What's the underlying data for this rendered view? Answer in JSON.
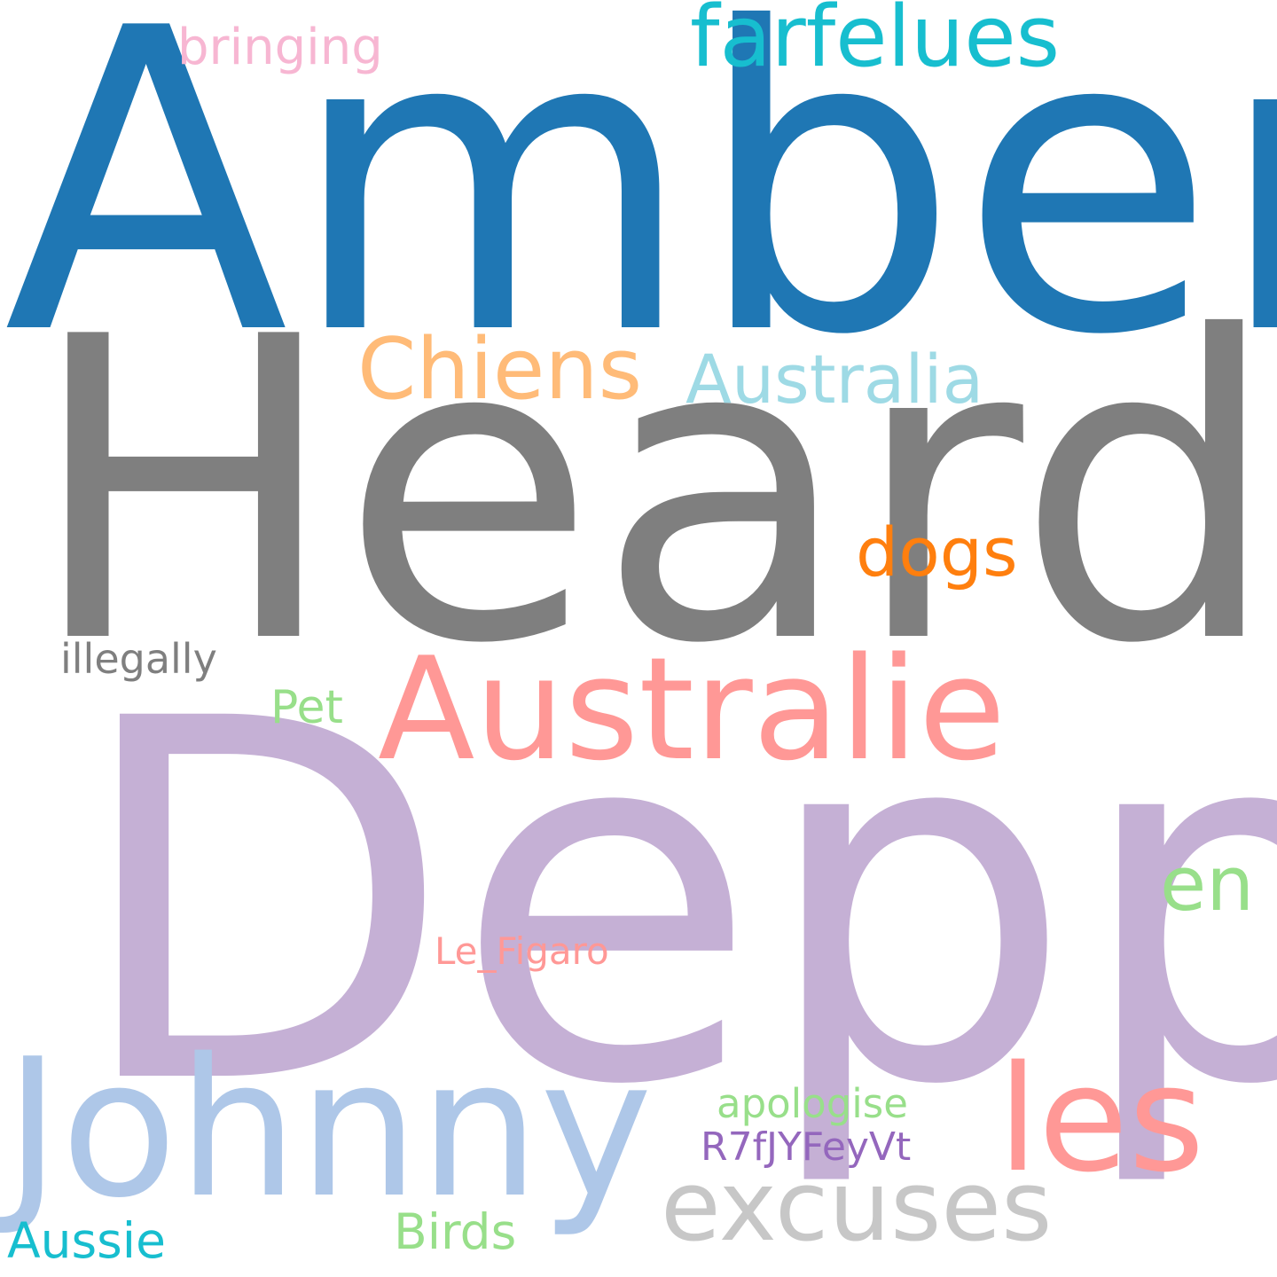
{
  "words": {
    "amber": {
      "text": "Amber",
      "color": "#1f77b4"
    },
    "heard": {
      "text": "Heard",
      "color": "#7f7f7f"
    },
    "depp": {
      "text": "Depp",
      "color": "#c5b0d5"
    },
    "johnny": {
      "text": "Johnny",
      "color": "#aec7e8"
    },
    "australie": {
      "text": "Australie",
      "color": "#ff9896"
    },
    "les": {
      "text": "les",
      "color": "#ff9896"
    },
    "excuses": {
      "text": "excuses",
      "color": "#c7c7c7"
    },
    "farfelues": {
      "text": "farfelues",
      "color": "#17becf"
    },
    "chiens": {
      "text": "Chiens",
      "color": "#ffbb78"
    },
    "australia": {
      "text": "Australia",
      "color": "#9edae5"
    },
    "dogs": {
      "text": "dogs",
      "color": "#ff7f0e"
    },
    "en": {
      "text": "en",
      "color": "#98df8a"
    },
    "bringing": {
      "text": "bringing",
      "color": "#f7b6d2"
    },
    "illegally": {
      "text": "illegally",
      "color": "#7f7f7f"
    },
    "pet": {
      "text": "Pet",
      "color": "#98df8a"
    },
    "lefigaro": {
      "text": "Le_Figaro",
      "color": "#ff9896"
    },
    "apologise": {
      "text": "apologise",
      "color": "#98df8a"
    },
    "r7f": {
      "text": "R7fJYFeyVt",
      "color": "#9467bd"
    },
    "aussie": {
      "text": "Aussie",
      "color": "#17becf"
    },
    "birds": {
      "text": "Birds",
      "color": "#98df8a"
    }
  }
}
